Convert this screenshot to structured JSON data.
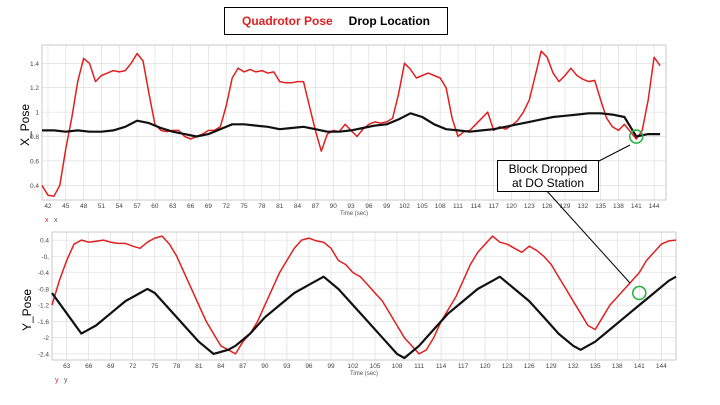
{
  "legend": {
    "pose_label": "Quadrotor Pose",
    "drop_label": "Drop Location"
  },
  "annotation": {
    "text": "Block Dropped at DO Station"
  },
  "colors": {
    "pose": "#e02020",
    "drop": "#111111",
    "marker": "#2db34a",
    "grid": "#d9d9d9"
  },
  "chart_data": [
    {
      "type": "line",
      "ylabel": "X_Pose",
      "xlabel": "Time (sec)",
      "corner_labels": [
        "x",
        "x"
      ],
      "xlim": [
        41,
        146
      ],
      "ylim": [
        0.28,
        1.55
      ],
      "xticks": [
        42,
        45,
        48,
        51,
        54,
        57,
        60,
        63,
        66,
        69,
        72,
        75,
        78,
        81,
        84,
        87,
        90,
        93,
        96,
        99,
        102,
        105,
        108,
        111,
        114,
        117,
        120,
        123,
        126,
        129,
        132,
        135,
        138,
        141,
        144
      ],
      "yticks": [
        0.4,
        0.6,
        0.8,
        1.0,
        1.2,
        1.4
      ],
      "yticklabels": [
        "0.4",
        "0.6",
        "0.8",
        "1",
        "1.2",
        "1.4"
      ],
      "grid": true,
      "series": [
        {
          "key": "pose",
          "x": [
            41,
            42,
            43,
            44,
            45,
            46,
            47,
            48,
            49,
            50,
            51,
            52,
            53,
            54,
            55,
            56,
            57,
            58,
            59,
            60,
            61,
            62,
            63,
            64,
            65,
            66,
            67,
            68,
            69,
            70,
            71,
            72,
            73,
            74,
            75,
            76,
            77,
            78,
            79,
            80,
            81,
            82,
            83,
            84,
            85,
            86,
            87,
            88,
            89,
            90,
            91,
            92,
            93,
            94,
            95,
            96,
            97,
            98,
            99,
            100,
            101,
            102,
            103,
            104,
            105,
            106,
            107,
            108,
            109,
            110,
            111,
            112,
            113,
            114,
            115,
            116,
            117,
            118,
            119,
            120,
            121,
            122,
            123,
            124,
            125,
            126,
            127,
            128,
            129,
            130,
            131,
            132,
            133,
            134,
            135,
            136,
            137,
            138,
            139,
            140,
            141,
            142,
            143,
            144,
            145
          ],
          "y": [
            0.4,
            0.32,
            0.31,
            0.4,
            0.7,
            0.95,
            1.25,
            1.44,
            1.4,
            1.25,
            1.3,
            1.32,
            1.34,
            1.33,
            1.34,
            1.4,
            1.48,
            1.42,
            1.15,
            0.9,
            0.85,
            0.84,
            0.85,
            0.85,
            0.8,
            0.78,
            0.8,
            0.82,
            0.85,
            0.85,
            0.88,
            1.05,
            1.28,
            1.36,
            1.33,
            1.35,
            1.33,
            1.34,
            1.32,
            1.33,
            1.25,
            1.24,
            1.24,
            1.25,
            1.25,
            1.05,
            0.85,
            0.68,
            0.82,
            0.85,
            0.84,
            0.9,
            0.85,
            0.8,
            0.86,
            0.9,
            0.92,
            0.91,
            0.92,
            0.95,
            1.15,
            1.4,
            1.35,
            1.28,
            1.3,
            1.32,
            1.3,
            1.28,
            1.2,
            0.95,
            0.8,
            0.84,
            0.85,
            0.9,
            0.95,
            1.0,
            0.85,
            0.88,
            0.86,
            0.89,
            0.93,
            1.0,
            1.1,
            1.3,
            1.5,
            1.45,
            1.32,
            1.25,
            1.3,
            1.36,
            1.3,
            1.27,
            1.25,
            1.26,
            1.1,
            0.95,
            0.88,
            0.85,
            0.9,
            0.84,
            0.78,
            0.85,
            1.1,
            1.45,
            1.38
          ]
        },
        {
          "key": "drop",
          "x": [
            41,
            43,
            45,
            47,
            49,
            51,
            53,
            55,
            57,
            59,
            61,
            63,
            65,
            67,
            69,
            71,
            73,
            75,
            77,
            79,
            81,
            83,
            85,
            87,
            89,
            91,
            93,
            95,
            97,
            99,
            101,
            103,
            105,
            107,
            109,
            111,
            113,
            115,
            117,
            119,
            121,
            123,
            125,
            127,
            129,
            131,
            133,
            135,
            137,
            139,
            141,
            143,
            145
          ],
          "y": [
            0.85,
            0.85,
            0.84,
            0.85,
            0.84,
            0.84,
            0.85,
            0.88,
            0.93,
            0.91,
            0.87,
            0.84,
            0.82,
            0.8,
            0.82,
            0.86,
            0.9,
            0.9,
            0.89,
            0.88,
            0.86,
            0.87,
            0.88,
            0.86,
            0.84,
            0.84,
            0.85,
            0.87,
            0.89,
            0.9,
            0.94,
            0.99,
            0.96,
            0.9,
            0.86,
            0.85,
            0.84,
            0.85,
            0.86,
            0.88,
            0.9,
            0.92,
            0.94,
            0.96,
            0.97,
            0.98,
            0.99,
            0.99,
            0.98,
            0.96,
            0.8,
            0.82,
            0.82
          ]
        }
      ],
      "marker": {
        "x": 141,
        "y": 0.8
      }
    },
    {
      "type": "line",
      "ylabel": "Y_Pose",
      "xlabel": "Time (sec)",
      "corner_labels": [
        "y",
        "y"
      ],
      "xlim": [
        61,
        146
      ],
      "ylim": [
        -2.55,
        0.6
      ],
      "xticks": [
        63,
        66,
        69,
        72,
        75,
        78,
        81,
        84,
        87,
        90,
        93,
        96,
        99,
        102,
        105,
        108,
        111,
        114,
        117,
        120,
        123,
        126,
        129,
        132,
        135,
        138,
        141,
        144
      ],
      "yticks": [
        0.4,
        0.0,
        -0.4,
        -0.8,
        -1.2,
        -1.6,
        -2.0,
        -2.4
      ],
      "yticklabels": [
        "0.4",
        "-0,",
        "-0.4",
        "-0.8",
        "-1.2",
        "-1.6",
        "-2",
        "-2.4"
      ],
      "grid": true,
      "series": [
        {
          "key": "pose",
          "x": [
            61,
            62,
            63,
            64,
            65,
            66,
            67,
            68,
            69,
            70,
            71,
            72,
            73,
            74,
            75,
            76,
            77,
            78,
            79,
            80,
            81,
            82,
            83,
            84,
            85,
            86,
            87,
            88,
            89,
            90,
            91,
            92,
            93,
            94,
            95,
            96,
            97,
            98,
            99,
            100,
            101,
            102,
            103,
            104,
            105,
            106,
            107,
            108,
            109,
            110,
            111,
            112,
            113,
            114,
            115,
            116,
            117,
            118,
            119,
            120,
            121,
            122,
            123,
            124,
            125,
            126,
            127,
            128,
            129,
            130,
            131,
            132,
            133,
            134,
            135,
            136,
            137,
            138,
            139,
            140,
            141,
            142,
            143,
            144,
            145,
            146
          ],
          "y": [
            -1.2,
            -0.6,
            -0.1,
            0.3,
            0.4,
            0.35,
            0.37,
            0.4,
            0.35,
            0.32,
            0.32,
            0.25,
            0.2,
            0.35,
            0.45,
            0.5,
            0.3,
            0.0,
            -0.4,
            -0.8,
            -1.2,
            -1.6,
            -1.9,
            -2.2,
            -2.3,
            -2.4,
            -2.1,
            -1.9,
            -1.6,
            -1.2,
            -0.8,
            -0.4,
            -0.1,
            0.2,
            0.4,
            0.45,
            0.38,
            0.35,
            0.2,
            -0.1,
            -0.2,
            -0.4,
            -0.5,
            -0.7,
            -0.9,
            -1.1,
            -1.4,
            -1.7,
            -2.0,
            -2.2,
            -2.4,
            -2.3,
            -2.0,
            -1.6,
            -1.3,
            -1.0,
            -0.6,
            -0.2,
            0.1,
            0.3,
            0.5,
            0.35,
            0.3,
            0.2,
            0.1,
            0.25,
            0.15,
            0.0,
            -0.2,
            -0.5,
            -0.8,
            -1.1,
            -1.4,
            -1.7,
            -1.8,
            -1.5,
            -1.2,
            -1.0,
            -0.8,
            -0.6,
            -0.4,
            -0.1,
            0.1,
            0.3,
            0.38,
            0.4
          ]
        },
        {
          "key": "drop",
          "x": [
            61,
            63,
            65,
            67,
            69,
            71,
            73,
            74,
            75,
            77,
            79,
            81,
            83,
            85,
            86,
            88,
            90,
            92,
            94,
            96,
            98,
            100,
            102,
            104,
            106,
            108,
            109,
            111,
            113,
            115,
            117,
            119,
            121,
            122,
            124,
            126,
            128,
            130,
            132,
            133,
            135,
            137,
            139,
            141,
            143,
            145,
            146
          ],
          "y": [
            -0.9,
            -1.4,
            -1.9,
            -1.7,
            -1.4,
            -1.1,
            -0.9,
            -0.8,
            -0.9,
            -1.3,
            -1.7,
            -2.1,
            -2.4,
            -2.3,
            -2.2,
            -1.9,
            -1.5,
            -1.2,
            -0.9,
            -0.7,
            -0.5,
            -0.8,
            -1.2,
            -1.6,
            -2.0,
            -2.4,
            -2.5,
            -2.2,
            -1.8,
            -1.4,
            -1.1,
            -0.8,
            -0.6,
            -0.5,
            -0.8,
            -1.1,
            -1.5,
            -1.9,
            -2.2,
            -2.3,
            -2.1,
            -1.8,
            -1.5,
            -1.2,
            -0.9,
            -0.6,
            -0.5
          ]
        }
      ],
      "marker": {
        "x": 141,
        "y": -0.9
      }
    }
  ]
}
